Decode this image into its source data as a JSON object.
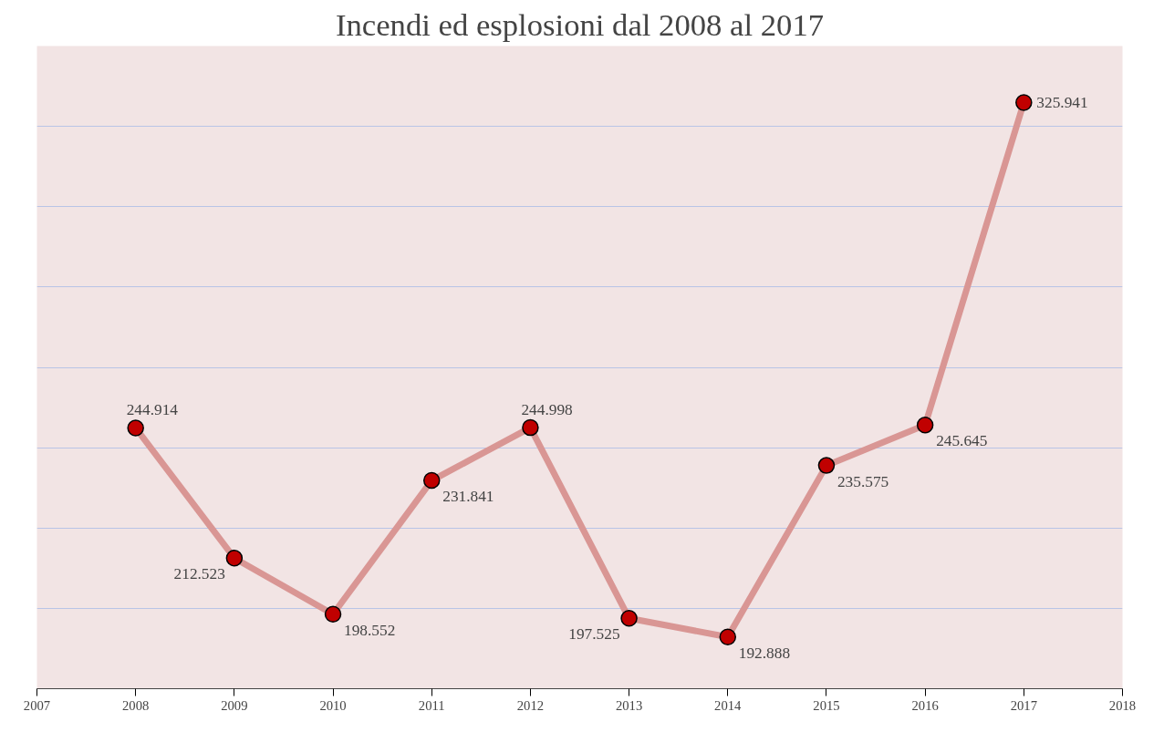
{
  "chart_data": {
    "type": "line",
    "title": "Incendi ed esplosioni dal 2008 al 2017",
    "x": [
      2008,
      2009,
      2010,
      2011,
      2012,
      2013,
      2014,
      2015,
      2016,
      2017
    ],
    "series": [
      {
        "color": "#d99694",
        "values": [
          244.914,
          212.523,
          198.552,
          231.841,
          244.998,
          197.525,
          192.888,
          235.575,
          245.645,
          325.941
        ]
      }
    ],
    "xlim": [
      2007,
      2018
    ],
    "xticks": [
      2007,
      2008,
      2009,
      2010,
      2011,
      2012,
      2013,
      2014,
      2015,
      2016,
      2017,
      2018
    ],
    "ylim": [
      180,
      340
    ],
    "yticks": [
      {
        "value": 180,
        "label": null
      },
      {
        "value": 200,
        "label": null
      },
      {
        "value": 220,
        "label": null
      },
      {
        "value": 240,
        "label": null
      },
      {
        "value": 260,
        "label": null
      },
      {
        "value": 280,
        "label": null
      },
      {
        "value": 300,
        "label": null
      },
      {
        "value": 320,
        "label": null
      },
      {
        "value": 340,
        "label": null
      }
    ],
    "tick_labels": "x",
    "grid": "y",
    "marker": "circle",
    "line_style": "solid",
    "data_labels": true
  }
}
